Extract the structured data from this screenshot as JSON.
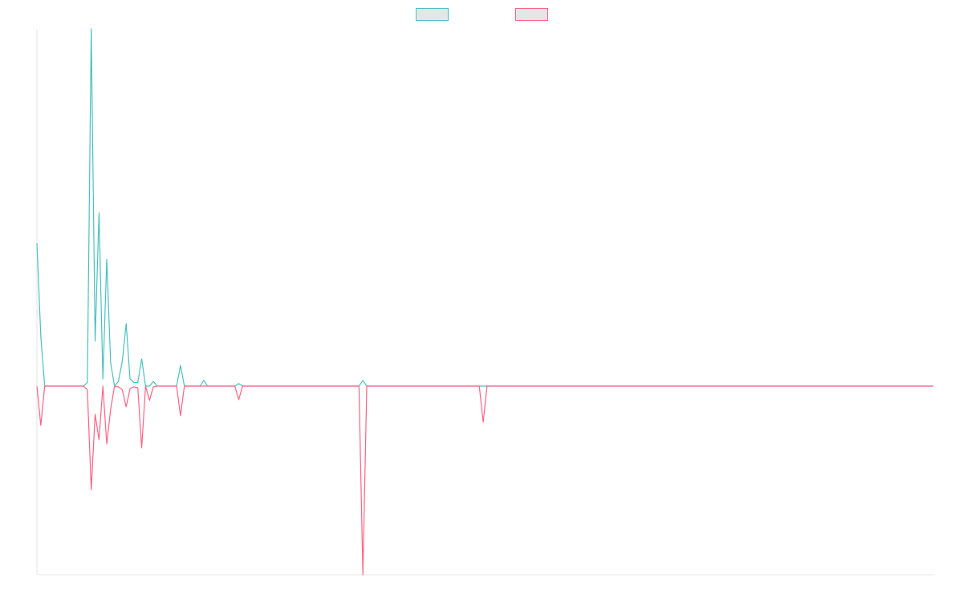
{
  "chart_data": {
    "type": "line",
    "categories": [
      null,
      null,
      null,
      null,
      null,
      null,
      null,
      null,
      null,
      null,
      null,
      null,
      null,
      null,
      null,
      null,
      null,
      null,
      null,
      null,
      null,
      null,
      null,
      null,
      null,
      null,
      null,
      null,
      null,
      null,
      null,
      null,
      null,
      null,
      null,
      null,
      null,
      null,
      null,
      null,
      null,
      null,
      null,
      null,
      null,
      null,
      null,
      null,
      null,
      null,
      null,
      null,
      null,
      null,
      null,
      null,
      null,
      null,
      null,
      null,
      null,
      null,
      null,
      null,
      null,
      null,
      null,
      null,
      null,
      null,
      null,
      null,
      null,
      null,
      null,
      null,
      null,
      null,
      null,
      null,
      null,
      null,
      null,
      null,
      null,
      null,
      null,
      null,
      null,
      null,
      null,
      null,
      null,
      null,
      null,
      null,
      null,
      null,
      null,
      null,
      null,
      null,
      null,
      null,
      null,
      null,
      null,
      null,
      null,
      null,
      null,
      null,
      null,
      null,
      null,
      null,
      null,
      null,
      null,
      null,
      null,
      null,
      null,
      null,
      null,
      null,
      null,
      null,
      null,
      null,
      null,
      null,
      null,
      null,
      null,
      null,
      null,
      null,
      null,
      null,
      null,
      null,
      null,
      null,
      null,
      null,
      null,
      null,
      null,
      null,
      null,
      null,
      null,
      null,
      null,
      null,
      null,
      null,
      null,
      null,
      null,
      null,
      null,
      null,
      null,
      null,
      null,
      null,
      null,
      null,
      null,
      null,
      null,
      null,
      null,
      null,
      null,
      null,
      null,
      null,
      null,
      null,
      null,
      null,
      null,
      null,
      null,
      null,
      null,
      null,
      null,
      null,
      null,
      null,
      null,
      null,
      null,
      null,
      null,
      null,
      null,
      null,
      null,
      null,
      null,
      null,
      null,
      null,
      null,
      null,
      null,
      null,
      null,
      null,
      null,
      null,
      null,
      null,
      null,
      null,
      null,
      null,
      null,
      null,
      null,
      null,
      null,
      null,
      null,
      null,
      null,
      null
    ],
    "series": [
      {
        "color": "#4bc0c0",
        "values": [
          40,
          14,
          0,
          0,
          0,
          0,
          0,
          0,
          0,
          0,
          0,
          0,
          0,
          1,
          100,
          12.6,
          48.5,
          2,
          35.5,
          6.5,
          0,
          1.3,
          7,
          17.5,
          2,
          1,
          1,
          7.6,
          0,
          0,
          1.3,
          0,
          0,
          0,
          0,
          0,
          0,
          5.8,
          0,
          0,
          0,
          0,
          0,
          1.6,
          0,
          0,
          0,
          0,
          0,
          0,
          0,
          0,
          0.7,
          0,
          0,
          0,
          0,
          0,
          0,
          0,
          0,
          0,
          0,
          0,
          0,
          0,
          0,
          0,
          0,
          0,
          0,
          0,
          0,
          0,
          0,
          0,
          0,
          0,
          0,
          0,
          0,
          0,
          0,
          0,
          1.6,
          0,
          0,
          0,
          0,
          0,
          0,
          0,
          0,
          0,
          0,
          0,
          0,
          0,
          0,
          0,
          0,
          0,
          0,
          0,
          0,
          0,
          0,
          0,
          0,
          0,
          0,
          0,
          0,
          0,
          0,
          0,
          0,
          0,
          0,
          0,
          0,
          0,
          0,
          0,
          0,
          0,
          0,
          0,
          0,
          0,
          0,
          0,
          0,
          0,
          0,
          0,
          0,
          0,
          0,
          0,
          0,
          0,
          0,
          0,
          0,
          0,
          0,
          0,
          0,
          0,
          0,
          0,
          0,
          0,
          0,
          0,
          0,
          0,
          0,
          0,
          0,
          0,
          0,
          0,
          0,
          0,
          0,
          0,
          0,
          0,
          0,
          0,
          0,
          0,
          0,
          0,
          0,
          0,
          0,
          0,
          0,
          0,
          0,
          0,
          0,
          0,
          0,
          0,
          0,
          0,
          0,
          0,
          0,
          0,
          0,
          0,
          0,
          0,
          0,
          0,
          0,
          0,
          0,
          0,
          0,
          0,
          0,
          0,
          0,
          0,
          0,
          0,
          0,
          0,
          0,
          0,
          0,
          0,
          0,
          0,
          0,
          0,
          0,
          0,
          0,
          0,
          0,
          0,
          0,
          0,
          0,
          0
        ]
      },
      {
        "color": "#ff6384",
        "values": [
          0,
          -11,
          0,
          0,
          0,
          0,
          0,
          0,
          0,
          0,
          0,
          0,
          0,
          -1,
          -29,
          -7.9,
          -15,
          0,
          -16.2,
          -6.5,
          0,
          -0.2,
          -1,
          -5.8,
          -0.7,
          -0.2,
          -0.5,
          -17.3,
          0,
          -4,
          -0.2,
          0,
          0,
          0,
          0,
          0,
          0,
          -8.3,
          0,
          0,
          0,
          0,
          0,
          0,
          0,
          0,
          0,
          0,
          0,
          0,
          0,
          0,
          -3.8,
          0,
          0,
          0,
          0,
          0,
          0,
          0,
          0,
          0,
          0,
          0,
          0,
          0,
          0,
          0,
          0,
          0,
          0,
          0,
          0,
          0,
          0,
          0,
          0,
          0,
          0,
          0,
          0,
          0,
          0,
          0,
          -52.8,
          0,
          0,
          0,
          0,
          0,
          0,
          0,
          0,
          0,
          0,
          0,
          0,
          0,
          0,
          0,
          0,
          0,
          0,
          0,
          0,
          0,
          0,
          0,
          0,
          0,
          0,
          0,
          0,
          0,
          0,
          -10.1,
          0,
          0,
          0,
          0,
          0,
          0,
          0,
          0,
          0,
          0,
          0,
          0,
          0,
          0,
          0,
          0,
          0,
          0,
          0,
          0,
          0,
          0,
          0,
          0,
          0,
          0,
          0,
          0,
          0,
          0,
          0,
          0,
          0,
          0,
          0,
          0,
          0,
          0,
          0,
          0,
          0,
          0,
          0,
          0,
          0,
          0,
          0,
          0,
          0,
          0,
          0,
          0,
          0,
          0,
          0,
          0,
          0,
          0,
          0,
          0,
          0,
          0,
          0,
          0,
          0,
          0,
          0,
          0,
          0,
          0,
          0,
          0,
          0,
          0,
          0,
          0,
          0,
          0,
          0,
          0,
          0,
          0,
          0,
          0,
          0,
          0,
          0,
          0,
          0,
          0,
          0,
          0,
          0,
          0,
          0,
          0,
          0,
          0,
          0,
          0,
          0,
          0,
          0,
          0,
          0,
          0,
          0,
          0,
          0,
          0,
          0,
          0,
          0,
          0,
          0,
          0
        ]
      }
    ],
    "ylim": [
      -52.8,
      100
    ]
  }
}
